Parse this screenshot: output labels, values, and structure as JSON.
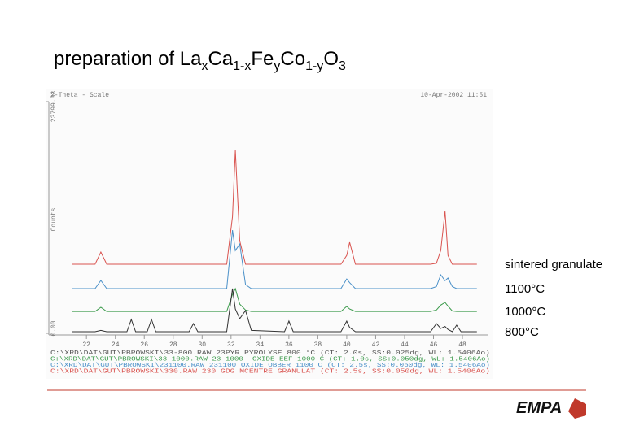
{
  "title_parts": [
    "preparation of La",
    "x",
    "Ca",
    "1-x",
    "Fe",
    "y",
    "Co",
    "1-y",
    "O",
    "3"
  ],
  "chart_data": {
    "type": "line",
    "header_left": "2-Theta - Scale",
    "header_right": "10-Apr-2002 11:51",
    "ylabel": "Counts",
    "x": [
      21,
      22.6,
      23,
      23.4,
      24.8,
      25.1,
      25.4,
      26.2,
      26.5,
      26.8,
      29.1,
      29.4,
      29.7,
      31.7,
      32.1,
      32.3,
      32.6,
      33,
      33.4,
      35.7,
      36,
      36.3,
      39.6,
      40,
      40.2,
      40.6,
      45.8,
      46.2,
      46.5,
      46.8,
      47,
      47.3,
      47.6,
      47.9,
      49
    ],
    "series": [
      {
        "name": "sintered granulate",
        "color": "#d9534f",
        "values": [
          7100,
          7100,
          8350,
          7100,
          7100,
          7100,
          7100,
          7100,
          7100,
          7100,
          7100,
          7100,
          7100,
          7100,
          12000,
          18790,
          9500,
          7100,
          7100,
          7100,
          7100,
          7100,
          7100,
          8000,
          9350,
          7100,
          7100,
          7200,
          8500,
          12530,
          8000,
          7100,
          7100,
          7100,
          7100
        ]
      },
      {
        "name": "1100°C",
        "color": "#4a90c8",
        "values": [
          4590,
          4590,
          5430,
          4590,
          4590,
          4590,
          4590,
          4590,
          4590,
          4590,
          4590,
          4590,
          4590,
          4590,
          10600,
          8500,
          9180,
          5000,
          4590,
          4590,
          4590,
          4590,
          4590,
          5590,
          5200,
          4590,
          4590,
          4800,
          6010,
          5400,
          5680,
          4800,
          4590,
          4590,
          4590
        ]
      },
      {
        "name": "1000°C",
        "color": "#3a9a4a",
        "values": [
          2250,
          2250,
          2670,
          2250,
          2250,
          2250,
          2250,
          2250,
          2250,
          2250,
          2250,
          2250,
          2250,
          2250,
          4000,
          4590,
          3000,
          2400,
          2250,
          2250,
          2250,
          2250,
          2250,
          2760,
          2500,
          2250,
          2250,
          2400,
          2900,
          3170,
          2800,
          2300,
          2250,
          2250,
          2250
        ]
      },
      {
        "name": "800°C",
        "color": "#333333",
        "values": [
          170,
          170,
          300,
          170,
          170,
          1420,
          170,
          170,
          1420,
          170,
          170,
          1000,
          170,
          170,
          4590,
          2500,
          1500,
          2340,
          300,
          170,
          1250,
          170,
          170,
          1250,
          600,
          170,
          170,
          1000,
          500,
          700,
          400,
          170,
          835,
          170,
          170
        ]
      }
    ],
    "xlim": [
      19.4,
      49.8
    ],
    "xticks": [
      22,
      24,
      26,
      28,
      30,
      32,
      34,
      36,
      38,
      40,
      42,
      44,
      46,
      48
    ],
    "ylim": [
      0,
      23799.03
    ],
    "yticks": [
      {
        "value": 0,
        "label": "0.00"
      },
      23799.03
    ],
    "file_lines": [
      {
        "text": "C:\\XRD\\DAT\\GUT\\PBROWSKI\\33-800.RAW 23PYR PYROLYSE 800 °C (CT: 2.0s, SS:0.025dg, WL: 1.5406Ao)",
        "color": "#555555"
      },
      {
        "text": "C:\\XRD\\DAT\\GUT\\PBROWSKI\\33-1000.RAW 23 1000- OXIDE EEF 1000 C (CT: 1.0s, SS:0.050dg, WL: 1.5406Ao)",
        "color": "#3a9a4a"
      },
      {
        "text": "C:\\XRD\\DAT\\GUT\\PBROWSKI\\231100.RAW 231100 OXIDE OBBER 1100 C (CT: 2.5s, SS:0.050dg, WL: 1.5406Ao)",
        "color": "#4a90c8"
      },
      {
        "text": "C:\\XRD\\DAT\\GUT\\PBROWSKI\\330.RAW 230 GDG MCENTRE GRANULAT (CT: 2.5s, SS:0.050dg, WL: 1.5406Ao)",
        "color": "#d9534f"
      }
    ]
  },
  "logo": "EMPA"
}
